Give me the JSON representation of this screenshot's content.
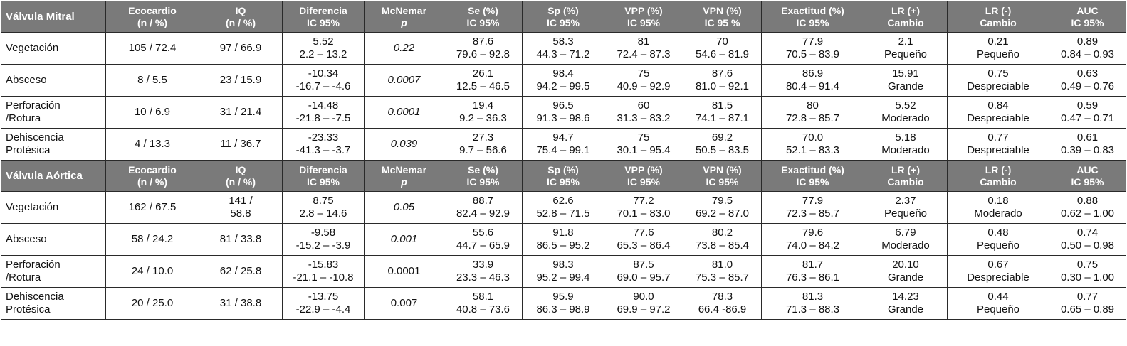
{
  "headers": {
    "ecocardio": [
      "Ecocardio",
      "(n / %)"
    ],
    "iq": [
      "IQ",
      "(n / %)"
    ],
    "diferencia": [
      "Diferencia",
      "IC 95%"
    ],
    "mcnemar": [
      "McNemar",
      "p"
    ],
    "se": [
      "Se (%)",
      "IC 95%"
    ],
    "sp": [
      "Sp (%)",
      "IC 95%"
    ],
    "vpp": [
      "VPP (%)",
      "IC 95%"
    ],
    "vpn_mitral": [
      "VPN (%)",
      "IC 95 %"
    ],
    "vpn_aortica": [
      "VPN (%)",
      "IC 95%"
    ],
    "exactitud": [
      "Exactitud (%)",
      "IC 95%"
    ],
    "lrpos": [
      "LR (+)",
      "Cambio"
    ],
    "lrneg": [
      "LR (-)",
      "Cambio"
    ],
    "auc": [
      "AUC",
      "IC 95%"
    ]
  },
  "mitral": {
    "title": "Válvula Mitral",
    "rows": [
      {
        "label": [
          "Vegetación"
        ],
        "eco": [
          "105 / 72.4"
        ],
        "iq": [
          "97 / 66.9"
        ],
        "dif": [
          "5.52",
          "2.2 – 13.2"
        ],
        "p": "0.22",
        "se": [
          "87.6",
          "79.6 – 92.8"
        ],
        "sp": [
          "58.3",
          "44.3 – 71.2"
        ],
        "vpp": [
          "81",
          "72.4 – 87.3"
        ],
        "vpn": [
          "70",
          "54.6 – 81.9"
        ],
        "exac": [
          "77.9",
          "70.5 – 83.9"
        ],
        "lrpos": [
          "2.1",
          "Pequeño"
        ],
        "lrneg": [
          "0.21",
          "Pequeño"
        ],
        "auc": [
          "0.89",
          "0.84 – 0.93"
        ]
      },
      {
        "label": [
          "Absceso"
        ],
        "eco": [
          "8 / 5.5"
        ],
        "iq": [
          "23 / 15.9"
        ],
        "dif": [
          "-10.34",
          "-16.7 – -4.6"
        ],
        "p": "0.0007",
        "se": [
          "26.1",
          "12.5 – 46.5"
        ],
        "sp": [
          "98.4",
          "94.2 – 99.5"
        ],
        "vpp": [
          "75",
          "40.9 – 92.9"
        ],
        "vpn": [
          "87.6",
          "81.0 – 92.1"
        ],
        "exac": [
          "86.9",
          "80.4 – 91.4"
        ],
        "lrpos": [
          "15.91",
          "Grande"
        ],
        "lrneg": [
          "0.75",
          "Despreciable"
        ],
        "auc": [
          "0.63",
          "0.49 – 0.76"
        ]
      },
      {
        "label": [
          "Perforación",
          "/Rotura"
        ],
        "eco": [
          "10 / 6.9"
        ],
        "iq": [
          "31 / 21.4"
        ],
        "dif": [
          "-14.48",
          "-21.8 – -7.5"
        ],
        "p": "0.0001",
        "se": [
          "19.4",
          "9.2 – 36.3"
        ],
        "sp": [
          "96.5",
          "91.3 – 98.6"
        ],
        "vpp": [
          "60",
          "31.3 – 83.2"
        ],
        "vpn": [
          "81.5",
          "74.1 – 87.1"
        ],
        "exac": [
          "80",
          "72.8 – 85.7"
        ],
        "lrpos": [
          "5.52",
          "Moderado"
        ],
        "lrneg": [
          "0.84",
          "Despreciable"
        ],
        "auc": [
          "0.59",
          "0.47 – 0.71"
        ]
      },
      {
        "label": [
          "Dehiscencia",
          "Protésica"
        ],
        "eco": [
          "4 / 13.3"
        ],
        "iq": [
          "11 / 36.7"
        ],
        "dif": [
          "-23.33",
          "-41.3 – -3.7"
        ],
        "p": "0.039",
        "se": [
          "27.3",
          "9.7 – 56.6"
        ],
        "sp": [
          "94.7",
          "75.4 – 99.1"
        ],
        "vpp": [
          "75",
          "30.1 – 95.4"
        ],
        "vpn": [
          "69.2",
          "50.5 – 83.5"
        ],
        "exac": [
          "70.0",
          "52.1 – 83.3"
        ],
        "lrpos": [
          "5.18",
          "Moderado"
        ],
        "lrneg": [
          "0.77",
          "Despreciable"
        ],
        "auc": [
          "0.61",
          "0.39 – 0.83"
        ]
      }
    ]
  },
  "aortica": {
    "title": "Válvula Aórtica",
    "rows": [
      {
        "label": [
          "Vegetación"
        ],
        "eco": [
          "162 / 67.5"
        ],
        "iq": [
          "141 /",
          "58.8"
        ],
        "dif": [
          "8.75",
          "2.8 – 14.6"
        ],
        "p": "0.05",
        "se": [
          "88.7",
          "82.4 – 92.9"
        ],
        "sp": [
          "62.6",
          "52.8 – 71.5"
        ],
        "vpp": [
          "77.2",
          "70.1 – 83.0"
        ],
        "vpn": [
          "79.5",
          "69.2 – 87.0"
        ],
        "exac": [
          "77.9",
          "72.3 – 85.7"
        ],
        "lrpos": [
          "2.37",
          "Pequeño"
        ],
        "lrneg": [
          "0.18",
          "Moderado"
        ],
        "auc": [
          "0.88",
          "0.62 – 1.00"
        ]
      },
      {
        "label": [
          "Absceso"
        ],
        "eco": [
          "58 / 24.2"
        ],
        "iq": [
          "81 / 33.8"
        ],
        "dif": [
          "-9.58",
          "-15.2 – -3.9"
        ],
        "p": "0.001",
        "se": [
          "55.6",
          "44.7 – 65.9"
        ],
        "sp": [
          "91.8",
          "86.5 – 95.2"
        ],
        "vpp": [
          "77.6",
          "65.3 – 86.4"
        ],
        "vpn": [
          "80.2",
          "73.8 – 85.4"
        ],
        "exac": [
          "79.6",
          "74.0 – 84.2"
        ],
        "lrpos": [
          "6.79",
          "Moderado"
        ],
        "lrneg": [
          "0.48",
          "Pequeño"
        ],
        "auc": [
          "0.74",
          "0.50 – 0.98"
        ]
      },
      {
        "label": [
          "Perforación",
          "/Rotura"
        ],
        "eco": [
          "24 / 10.0"
        ],
        "iq": [
          "62 / 25.8"
        ],
        "dif": [
          "-15.83",
          "-21.1 – -10.8"
        ],
        "p": "0.0001",
        "se": [
          "33.9",
          "23.3 – 46.3"
        ],
        "sp": [
          "98.3",
          "95.2 – 99.4"
        ],
        "vpp": [
          "87.5",
          "69.0 – 95.7"
        ],
        "vpn": [
          "81.0",
          "75.3 – 85.7"
        ],
        "exac": [
          "81.7",
          "76.3 – 86.1"
        ],
        "lrpos": [
          "20.10",
          "Grande"
        ],
        "lrneg": [
          "0.67",
          "Despreciable"
        ],
        "auc": [
          "0.75",
          "0.30 – 1.00"
        ]
      },
      {
        "label": [
          "Dehiscencia",
          "Protésica"
        ],
        "eco": [
          "20 / 25.0"
        ],
        "iq": [
          "31 / 38.8"
        ],
        "dif": [
          "-13.75",
          "-22.9 – -4.4"
        ],
        "p": "0.007",
        "se": [
          "58.1",
          "40.8 – 73.6"
        ],
        "sp": [
          "95.9",
          "86.3 – 98.9"
        ],
        "vpp": [
          "90.0",
          "69.9 – 97.2"
        ],
        "vpn": [
          "78.3",
          "66.4 -86.9"
        ],
        "exac": [
          "81.3",
          "71.3 – 88.3"
        ],
        "lrpos": [
          "14.23",
          "Grande"
        ],
        "lrneg": [
          "0.44",
          "Pequeño"
        ],
        "auc": [
          "0.77",
          "0.65 – 0.89"
        ]
      }
    ]
  }
}
